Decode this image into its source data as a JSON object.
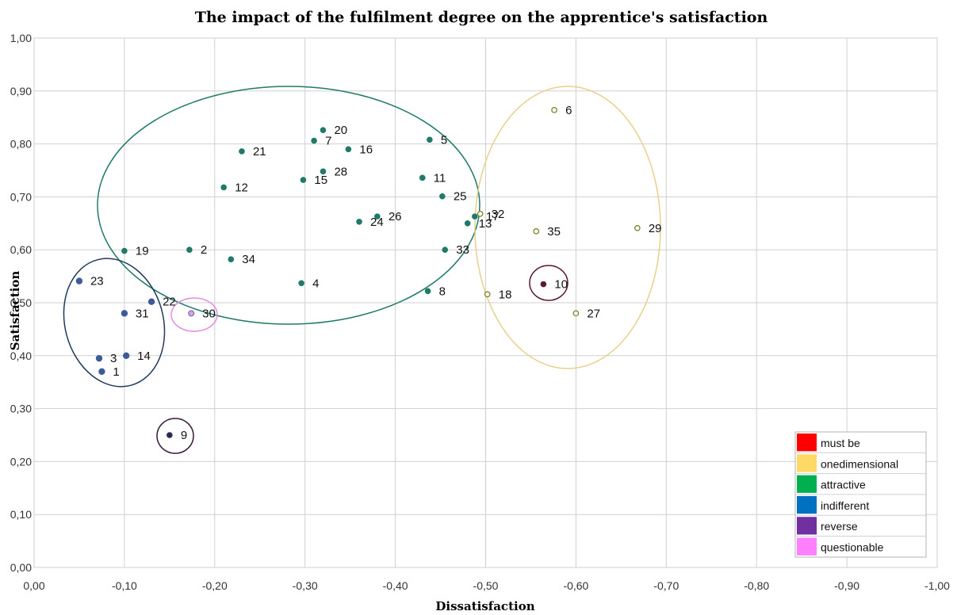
{
  "chart_data": {
    "type": "scatter",
    "title": "The impact of the fulfilment degree on the apprentice's satisfaction",
    "xlabel": "Dissatisfaction",
    "ylabel": "Satisfaction",
    "xlim": [
      0,
      -1
    ],
    "ylim": [
      0,
      1
    ],
    "x_ticks": [
      "0,00",
      "-0,10",
      "-0,20",
      "-0,30",
      "-0,40",
      "-0,50",
      "-0,60",
      "-0,70",
      "-0,80",
      "-0,90",
      "-1,00"
    ],
    "y_ticks": [
      "0,00",
      "0,10",
      "0,20",
      "0,30",
      "0,40",
      "0,50",
      "0,60",
      "0,70",
      "0,80",
      "0,90",
      "1,00"
    ],
    "grid": true,
    "legend_position": "bottom-right",
    "categories": [
      {
        "key": "must_be",
        "name": "must be",
        "color": "#ff0000"
      },
      {
        "key": "onedimensional",
        "name": "onedimensional",
        "color": "#ffd966"
      },
      {
        "key": "attractive",
        "name": "attractive",
        "color": "#00b050"
      },
      {
        "key": "indifferent",
        "name": "indifferent",
        "color": "#0070c0"
      },
      {
        "key": "reverse",
        "name": "reverse",
        "color": "#7030a0"
      },
      {
        "key": "questionable",
        "name": "questionable",
        "color": "#ff80ff"
      }
    ],
    "points": [
      {
        "label": "1",
        "x": -0.075,
        "y": 0.37,
        "category": "indifferent"
      },
      {
        "label": "2",
        "x": -0.172,
        "y": 0.6,
        "category": "attractive"
      },
      {
        "label": "3",
        "x": -0.072,
        "y": 0.395,
        "category": "indifferent"
      },
      {
        "label": "4",
        "x": -0.296,
        "y": 0.537,
        "category": "attractive"
      },
      {
        "label": "5",
        "x": -0.438,
        "y": 0.808,
        "category": "attractive"
      },
      {
        "label": "6",
        "x": -0.576,
        "y": 0.864,
        "category": "onedimensional"
      },
      {
        "label": "7",
        "x": -0.31,
        "y": 0.806,
        "category": "attractive"
      },
      {
        "label": "8",
        "x": -0.436,
        "y": 0.522,
        "category": "attractive"
      },
      {
        "label": "9",
        "x": -0.15,
        "y": 0.25,
        "category": "reverse"
      },
      {
        "label": "10",
        "x": -0.564,
        "y": 0.535,
        "category": "reverse"
      },
      {
        "label": "11",
        "x": -0.43,
        "y": 0.736,
        "category": "attractive"
      },
      {
        "label": "12",
        "x": -0.21,
        "y": 0.718,
        "category": "attractive"
      },
      {
        "label": "13",
        "x": -0.48,
        "y": 0.65,
        "category": "attractive"
      },
      {
        "label": "14",
        "x": -0.102,
        "y": 0.4,
        "category": "indifferent"
      },
      {
        "label": "15",
        "x": -0.298,
        "y": 0.732,
        "category": "attractive"
      },
      {
        "label": "16",
        "x": -0.348,
        "y": 0.79,
        "category": "attractive"
      },
      {
        "label": "17",
        "x": -0.488,
        "y": 0.663,
        "category": "attractive"
      },
      {
        "label": "18",
        "x": -0.502,
        "y": 0.516,
        "category": "onedimensional"
      },
      {
        "label": "19",
        "x": -0.1,
        "y": 0.598,
        "category": "attractive"
      },
      {
        "label": "20",
        "x": -0.32,
        "y": 0.826,
        "category": "attractive"
      },
      {
        "label": "21",
        "x": -0.23,
        "y": 0.786,
        "category": "attractive"
      },
      {
        "label": "22",
        "x": -0.13,
        "y": 0.502,
        "category": "indifferent"
      },
      {
        "label": "23",
        "x": -0.05,
        "y": 0.541,
        "category": "indifferent"
      },
      {
        "label": "24",
        "x": -0.36,
        "y": 0.653,
        "category": "attractive"
      },
      {
        "label": "25",
        "x": -0.452,
        "y": 0.701,
        "category": "attractive"
      },
      {
        "label": "26",
        "x": -0.38,
        "y": 0.663,
        "category": "attractive"
      },
      {
        "label": "27",
        "x": -0.6,
        "y": 0.48,
        "category": "onedimensional"
      },
      {
        "label": "28",
        "x": -0.32,
        "y": 0.748,
        "category": "attractive"
      },
      {
        "label": "29",
        "x": -0.668,
        "y": 0.641,
        "category": "onedimensional"
      },
      {
        "label": "30",
        "x": -0.174,
        "y": 0.48,
        "category": "questionable"
      },
      {
        "label": "31",
        "x": -0.1,
        "y": 0.48,
        "category": "indifferent"
      },
      {
        "label": "32",
        "x": -0.494,
        "y": 0.668,
        "category": "onedimensional"
      },
      {
        "label": "33",
        "x": -0.455,
        "y": 0.6,
        "category": "attractive"
      },
      {
        "label": "34",
        "x": -0.218,
        "y": 0.582,
        "category": "attractive"
      },
      {
        "label": "35",
        "x": -0.556,
        "y": 0.635,
        "category": "onedimensional"
      }
    ]
  }
}
